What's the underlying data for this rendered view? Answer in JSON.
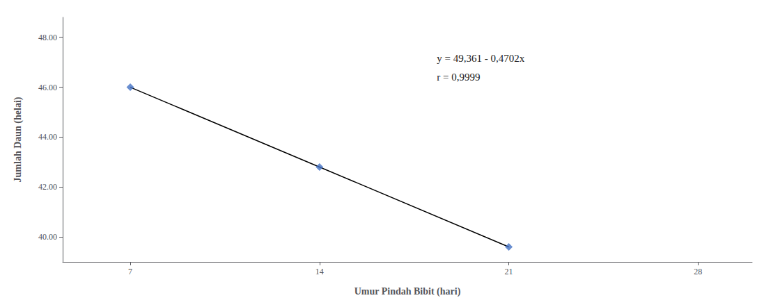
{
  "chart_data": {
    "type": "line",
    "x": [
      7,
      14,
      21
    ],
    "series": [
      {
        "type": "line",
        "color": "black",
        "values": [
          46.0,
          42.8,
          39.6
        ]
      },
      {
        "type": "scatter",
        "color": "#4472C4",
        "marker": "diamond",
        "values": [
          46.0,
          42.8,
          39.6
        ]
      }
    ],
    "annotations": [
      "y = 49,361 - 0,4702x",
      "r = 0,9999"
    ],
    "xlabel": "Umur Pindah Bibit (hari)",
    "ylabel": "Jumlah Daun (helai)",
    "xlim": [
      4.5,
      30
    ],
    "xticks": [
      7,
      14,
      21,
      28
    ],
    "ylim": [
      39.0,
      48.8
    ],
    "yticks": [
      {
        "value": 40.0,
        "label": "40.00"
      },
      {
        "value": 42.0,
        "label": "42.00"
      },
      {
        "value": 44.0,
        "label": "44.00"
      },
      {
        "value": 46.0,
        "label": "46.00"
      },
      {
        "value": 48.0,
        "label": "48.00"
      }
    ],
    "grid": false
  }
}
